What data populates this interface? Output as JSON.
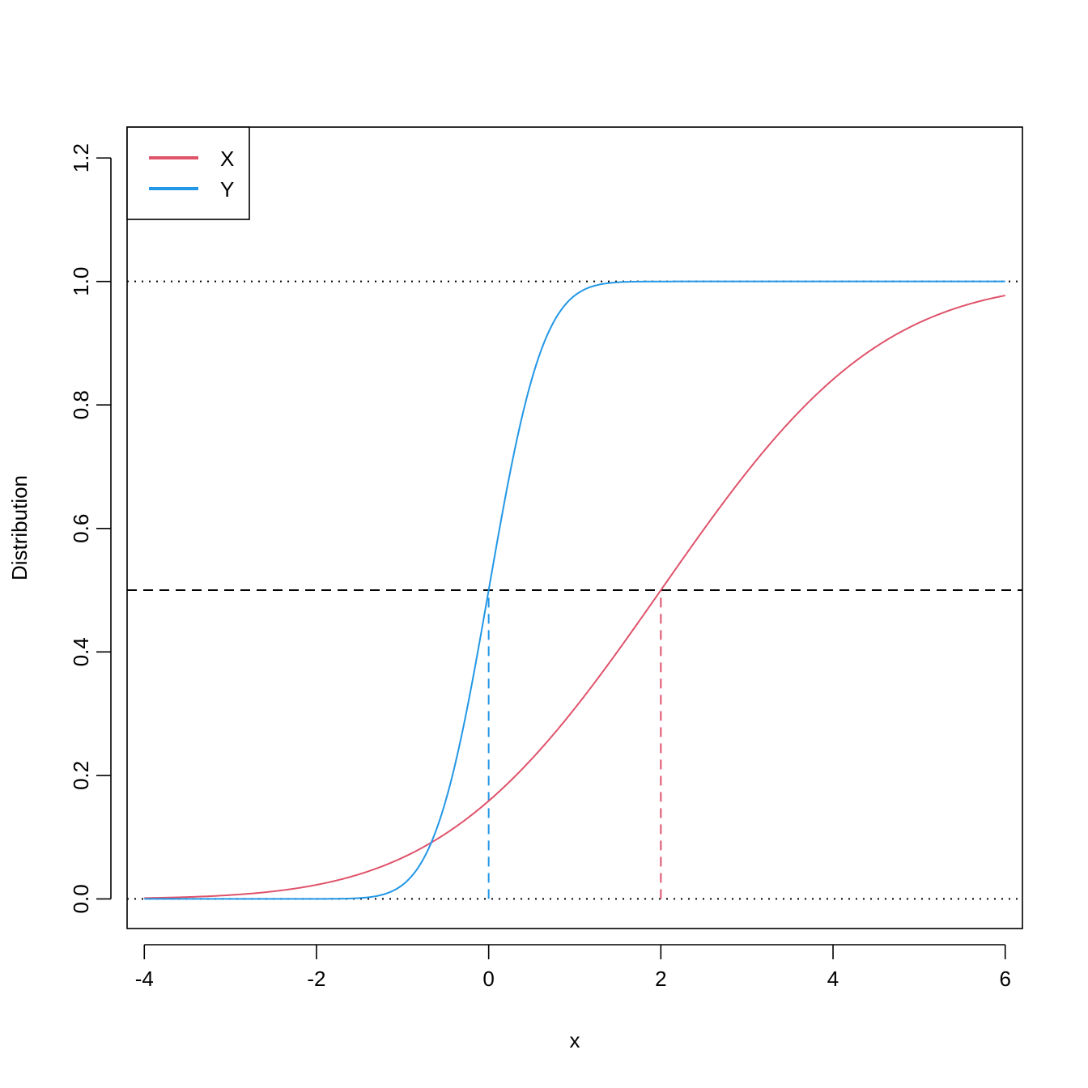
{
  "chart_data": {
    "type": "line",
    "xlabel": "x",
    "ylabel": "Distribution",
    "xlim": [
      -4.2,
      6.2
    ],
    "ylim": [
      -0.048,
      1.25
    ],
    "x_ticks": [
      -4,
      -2,
      0,
      2,
      4,
      6
    ],
    "x_tick_labels": [
      "-4",
      "-2",
      "0",
      "2",
      "4",
      "6"
    ],
    "y_ticks": [
      0.0,
      0.2,
      0.4,
      0.6,
      0.8,
      1.0,
      1.2
    ],
    "y_tick_labels": [
      "0.0",
      "0.2",
      "0.4",
      "0.6",
      "0.8",
      "1.0",
      "1.2"
    ],
    "grid": false,
    "legend": {
      "position": "top-left"
    },
    "series": [
      {
        "name": "X",
        "color": "#DF536B",
        "distribution": "normal",
        "mean": 2,
        "sd": 2,
        "x": [
          -4,
          -3,
          -2,
          -1,
          -0.5,
          0,
          0.5,
          1,
          1.5,
          2,
          2.5,
          3,
          3.5,
          4,
          5,
          6
        ],
        "y": [
          0.001,
          0.006,
          0.023,
          0.067,
          0.106,
          0.159,
          0.227,
          0.309,
          0.401,
          0.5,
          0.599,
          0.691,
          0.773,
          0.841,
          0.933,
          0.977
        ]
      },
      {
        "name": "Y",
        "color": "#2297E6",
        "distribution": "normal",
        "mean": 0,
        "sd": 0.5,
        "x": [
          -4,
          -2,
          -1.5,
          -1,
          -0.75,
          -0.5,
          -0.25,
          0,
          0.25,
          0.5,
          0.75,
          1,
          1.5,
          2,
          6
        ],
        "y": [
          0,
          0,
          0.001,
          0.023,
          0.067,
          0.159,
          0.309,
          0.5,
          0.691,
          0.841,
          0.933,
          0.977,
          0.999,
          1,
          1
        ]
      }
    ],
    "reference_lines": [
      {
        "type": "horizontal",
        "y": 0,
        "style": "dotted",
        "color": "#000000"
      },
      {
        "type": "horizontal",
        "y": 1,
        "style": "dotted",
        "color": "#000000"
      },
      {
        "type": "horizontal",
        "y": 0.5,
        "style": "dashed",
        "color": "#000000"
      },
      {
        "type": "vertical",
        "x": 0,
        "y_from": 0,
        "y_to": 0.5,
        "style": "dashed",
        "color": "#2297E6"
      },
      {
        "type": "vertical",
        "x": 2,
        "y_from": 0,
        "y_to": 0.5,
        "style": "dashed",
        "color": "#DF536B"
      }
    ]
  }
}
